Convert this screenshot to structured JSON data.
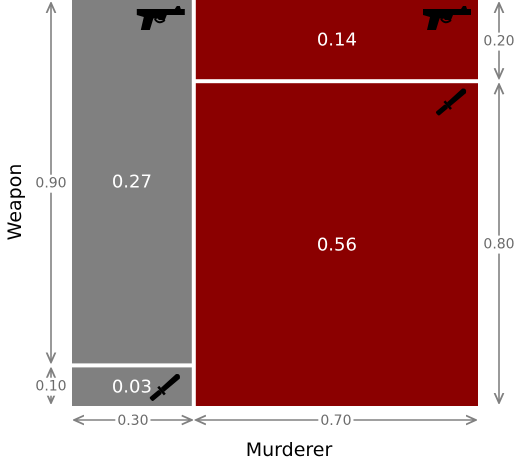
{
  "chart_data": {
    "type": "mosaic",
    "xlabel": "Murderer",
    "ylabel": "Weapon",
    "columns": [
      {
        "color": "#808080",
        "width_label": "0.30",
        "width": 0.3,
        "cells": [
          {
            "weapon_icon": "revolver-icon",
            "value": 0.27,
            "label": "0.27",
            "share": 0.9,
            "share_label": "0.90"
          },
          {
            "weapon_icon": "knife-icon",
            "value": 0.03,
            "label": "0.03",
            "share": 0.1,
            "share_label": "0.10"
          }
        ]
      },
      {
        "color": "#8b0000",
        "width_label": "0.70",
        "width": 0.7,
        "cells": [
          {
            "weapon_icon": "revolver-icon",
            "value": 0.14,
            "label": "0.14",
            "share": 0.2,
            "share_label": "0.20"
          },
          {
            "weapon_icon": "knife-icon",
            "value": 0.56,
            "label": "0.56",
            "share": 0.8,
            "share_label": "0.80"
          }
        ]
      }
    ]
  }
}
